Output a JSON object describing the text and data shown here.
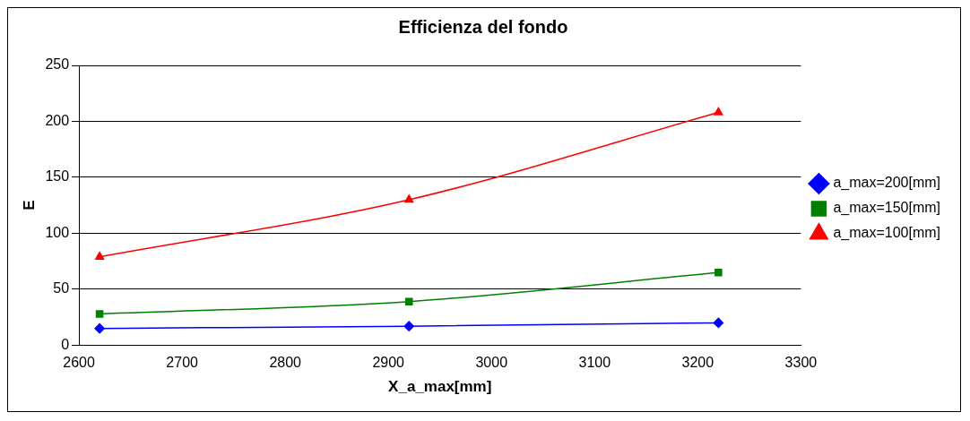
{
  "chart_data": {
    "type": "line",
    "title": "Efficienza del fondo",
    "xlabel": "X_a_max[mm]",
    "ylabel": "E",
    "x": [
      2620,
      2920,
      3220
    ],
    "series": [
      {
        "name": "a_max=200[mm]",
        "color": "#0000ff",
        "marker": "diamond",
        "values": [
          15,
          17,
          20
        ]
      },
      {
        "name": "a_max=150[mm]",
        "color": "#008000",
        "marker": "square",
        "values": [
          28,
          39,
          65
        ]
      },
      {
        "name": "a_max=100[mm]",
        "color": "#ff0000",
        "marker": "triangle",
        "values": [
          79,
          130,
          208
        ]
      }
    ],
    "xlim": [
      2600,
      3300
    ],
    "xticks": [
      2600,
      2700,
      2800,
      2900,
      3000,
      3100,
      3200,
      3300
    ],
    "ylim": [
      0,
      250
    ],
    "yticks": [
      0,
      50,
      100,
      150,
      200,
      250
    ],
    "grid": "y",
    "legend": "right"
  }
}
